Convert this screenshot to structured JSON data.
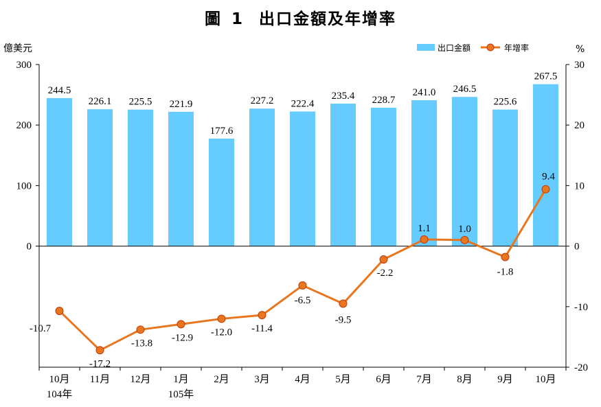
{
  "title": {
    "prefix": "圖",
    "number": "1",
    "text": "出口金額及年增率"
  },
  "chart_data": {
    "type": "bar",
    "categories": [
      "10月",
      "11月",
      "12月",
      "1月",
      "2月",
      "3月",
      "4月",
      "5月",
      "6月",
      "7月",
      "8月",
      "9月",
      "10月"
    ],
    "year_labels": [
      "104年",
      "",
      "",
      "105年",
      "",
      "",
      "",
      "",
      "",
      "",
      "",
      "",
      ""
    ],
    "series": [
      {
        "name": "出口金額",
        "type": "bar",
        "axis": "left",
        "color": "#66CCFF",
        "values": [
          244.5,
          226.1,
          225.5,
          221.9,
          177.6,
          227.2,
          222.4,
          235.4,
          228.7,
          241.0,
          246.5,
          225.6,
          267.5
        ],
        "labels": [
          "244.5",
          "226.1",
          "225.5",
          "221.9",
          "177.6",
          "227.2",
          "222.4",
          "235.4",
          "228.7",
          "241.0",
          "246.5",
          "225.6",
          "267.5"
        ]
      },
      {
        "name": "年增率",
        "type": "line",
        "axis": "right",
        "color": "#E8761E",
        "values": [
          -10.7,
          -17.2,
          -13.8,
          -12.9,
          -12.0,
          -11.4,
          -6.5,
          -9.5,
          -2.2,
          1.1,
          1.0,
          -1.8,
          9.4
        ],
        "labels": [
          "-10.7",
          "-17.2",
          "-13.8",
          "-12.9",
          "-12.0",
          "-11.4",
          "-6.5",
          "-9.5",
          "-2.2",
          "1.1",
          "1.0",
          "-1.8",
          "9.4"
        ]
      }
    ],
    "left_axis": {
      "unit": "億美元",
      "ticks": [
        300,
        200,
        100,
        0
      ],
      "range": [
        -200,
        300
      ]
    },
    "right_axis": {
      "unit": "%",
      "ticks": [
        30,
        20,
        10,
        0,
        -10,
        -20
      ],
      "range": [
        -20,
        30
      ]
    },
    "legend": {
      "position": "top-right",
      "items": [
        "出口金額",
        "年增率"
      ]
    },
    "grid": false
  }
}
